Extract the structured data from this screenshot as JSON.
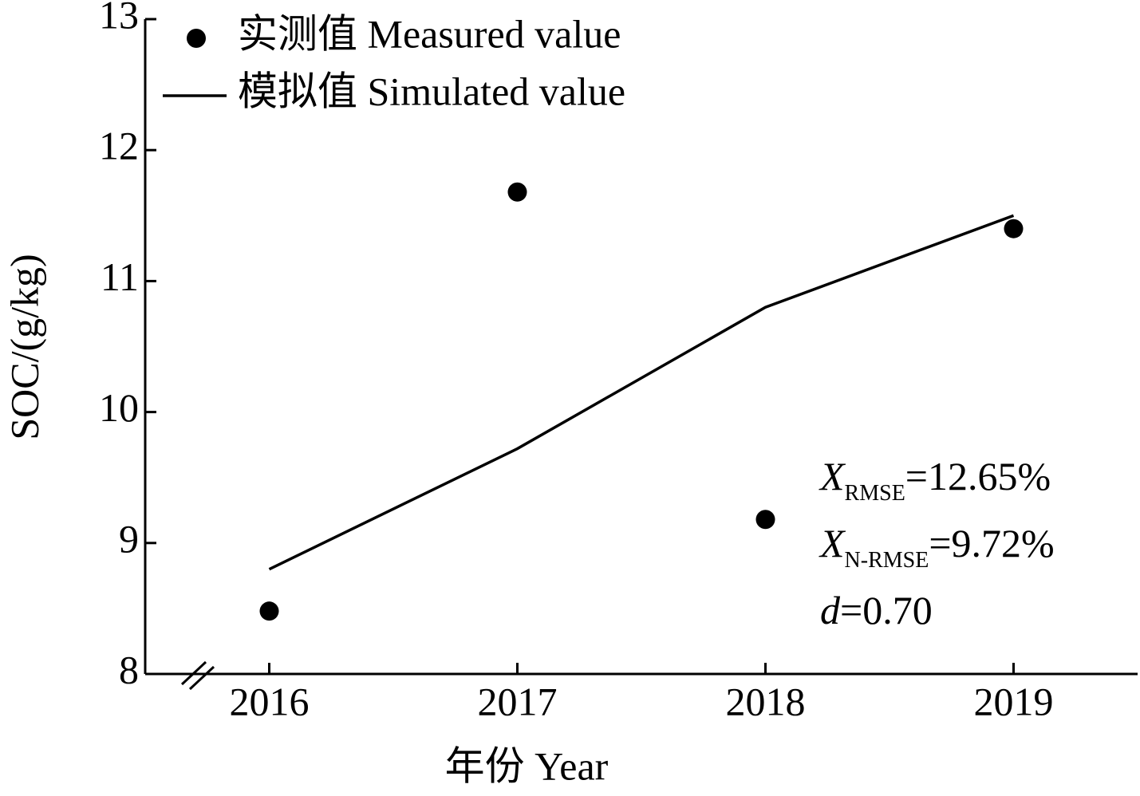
{
  "chart_data": {
    "type": "line",
    "x_label": "年份 Year",
    "y_label": "SOC/(g/kg)",
    "x": [
      2016,
      2017,
      2018,
      2019
    ],
    "xlim": [
      2015.5,
      2019.5
    ],
    "xticks": [
      2016,
      2017,
      2018,
      2019
    ],
    "ylim": [
      8,
      13
    ],
    "yticks": [
      8,
      9,
      10,
      11,
      12,
      13
    ],
    "series": [
      {
        "name": "实测值 Measured value",
        "color": "#000000",
        "marker": "circle",
        "line": false,
        "values": [
          8.48,
          11.68,
          9.18,
          11.4
        ]
      },
      {
        "name": "模拟值 Simulated value",
        "color": "#000000",
        "marker": "none",
        "line": true,
        "values": [
          8.8,
          9.72,
          10.8,
          11.5
        ]
      }
    ],
    "annotations": [
      {
        "symbol": "X",
        "subscript": "RMSE",
        "text": "=12.65%"
      },
      {
        "symbol": "X",
        "subscript": "N-RMSE",
        "text": "=9.72%"
      },
      {
        "symbol": "d",
        "text": "=0.70"
      }
    ],
    "legend": "upper left",
    "grid": false
  }
}
